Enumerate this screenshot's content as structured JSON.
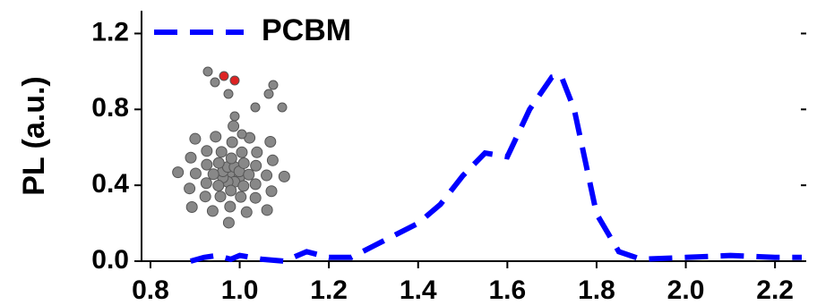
{
  "chart_data": {
    "type": "line",
    "y_label": "PL (a.u.)",
    "x": [
      0.89,
      0.92,
      0.95,
      0.98,
      1.0,
      1.05,
      1.1,
      1.15,
      1.2,
      1.25,
      1.3,
      1.4,
      1.45,
      1.5,
      1.55,
      1.6,
      1.65,
      1.7,
      1.72,
      1.75,
      1.8,
      1.85,
      1.9,
      2.0,
      2.1,
      2.2,
      2.26
    ],
    "series": [
      {
        "name": "PCBM",
        "color": "#0000ff",
        "values": [
          0.0,
          0.02,
          0.03,
          0.01,
          0.03,
          0.01,
          0.0,
          0.05,
          0.02,
          0.02,
          0.08,
          0.2,
          0.3,
          0.45,
          0.57,
          0.55,
          0.8,
          0.97,
          0.98,
          0.8,
          0.25,
          0.05,
          0.01,
          0.02,
          0.03,
          0.02,
          0.02
        ]
      }
    ],
    "xlim": [
      0.78,
      2.27
    ],
    "ylim": [
      0,
      1.32
    ],
    "xticks": [
      {
        "value": 0.8,
        "label": "0.8"
      },
      {
        "value": 1.0,
        "label": "1.0"
      },
      {
        "value": 1.2,
        "label": "1.2"
      },
      {
        "value": 1.4,
        "label": "1.4"
      },
      {
        "value": 1.6,
        "label": "1.6"
      },
      {
        "value": 1.8,
        "label": "1.8"
      },
      {
        "value": 2.0,
        "label": "2.0"
      },
      {
        "value": 2.2,
        "label": "2.2"
      }
    ],
    "yticks": [
      {
        "value": 0,
        "label": "0.0"
      },
      {
        "value": 0.4,
        "label": "0.4"
      },
      {
        "value": 0.8,
        "label": "0.8"
      },
      {
        "value": 1.2,
        "label": "1.2"
      }
    ],
    "legend": "upper left",
    "grid": false
  }
}
